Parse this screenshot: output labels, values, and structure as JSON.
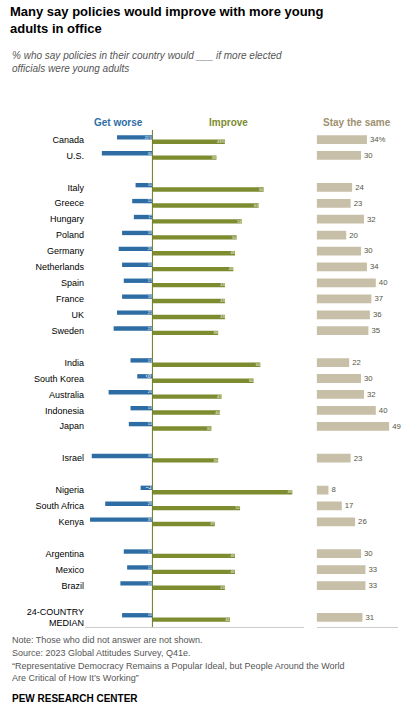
{
  "chart_data": [
    {
      "type": "bar",
      "orientation": "horizontal",
      "title": "Many say policies would improve with more young\nadults in office",
      "subtitle": "% who say policies in their country would ___ if more elected\nofficials were young adults",
      "annotations": [
        "Note: Those who did not answer are not shown.",
        "Source: 2023 Global Attitudes Survey, Q41e.",
        "“Representative Democracy Remains a Popular Ideal, but People Around the World Are Critical of How It’s Working”",
        "PEW RESEARCH CENTER"
      ],
      "categories": [
        "Canada",
        "U.S.",
        null,
        "Italy",
        "Greece",
        "Hungary",
        "Poland",
        "Germany",
        "Netherlands",
        "Spain",
        "France",
        "UK",
        "Sweden",
        null,
        "India",
        "South Korea",
        "Australia",
        "Indonesia",
        "Japan",
        null,
        "Israel",
        null,
        "Nigeria",
        "South Africa",
        "Kenya",
        null,
        "Argentina",
        "Mexico",
        "Brazil",
        null,
        "24-COUNTRY\nMEDIAN"
      ],
      "series": [
        {
          "name": "Get worse",
          "color": "#2e6da4",
          "values": [
            21,
            30,
            null,
            10,
            12,
            11,
            18,
            20,
            18,
            17,
            18,
            21,
            23,
            null,
            13,
            9,
            26,
            13,
            14,
            null,
            36,
            null,
            7,
            28,
            37,
            null,
            17,
            15,
            19,
            null,
            18
          ],
          "value_labels": [
            "21%",
            "30",
            null,
            "10",
            "12",
            "11",
            "18",
            "20",
            "18",
            "17",
            "18",
            "21",
            "23",
            null,
            "13",
            "9",
            "26",
            "13",
            "14",
            null,
            "36",
            null,
            "7",
            "28",
            "37",
            null,
            "17",
            "15",
            "19",
            null,
            "18"
          ]
        },
        {
          "name": "Improve",
          "color": "#7d8c2e",
          "values": [
            43,
            38,
            null,
            66,
            63,
            53,
            50,
            49,
            48,
            43,
            43,
            43,
            39,
            null,
            64,
            60,
            41,
            40,
            35,
            null,
            39,
            null,
            83,
            52,
            37,
            null,
            49,
            49,
            43,
            null,
            46
          ],
          "value_labels": [
            "43%",
            "38",
            null,
            "66",
            "63",
            "53",
            "50",
            "49",
            "48",
            "43",
            "43",
            "43",
            "39",
            null,
            "64",
            "60",
            "41",
            "40",
            "35",
            null,
            "39",
            null,
            "83",
            "52",
            "37",
            null,
            "49",
            "49",
            "43",
            null,
            "46"
          ]
        }
      ],
      "xlim": [
        -40,
        90
      ],
      "tick_labels": "y",
      "data_labels": true
    },
    {
      "type": "bar",
      "orientation": "horizontal",
      "categories": [
        "Canada",
        "U.S.",
        null,
        "Italy",
        "Greece",
        "Hungary",
        "Poland",
        "Germany",
        "Netherlands",
        "Spain",
        "France",
        "UK",
        "Sweden",
        null,
        "India",
        "South Korea",
        "Australia",
        "Indonesia",
        "Japan",
        null,
        "Israel",
        null,
        "Nigeria",
        "South Africa",
        "Kenya",
        null,
        "Argentina",
        "Mexico",
        "Brazil",
        null,
        "24-COUNTRY\nMEDIAN"
      ],
      "series": [
        {
          "name": "Stay the same",
          "color": "#c8bfa8",
          "values": [
            34,
            30,
            null,
            24,
            23,
            32,
            20,
            30,
            34,
            40,
            37,
            36,
            35,
            null,
            22,
            30,
            32,
            40,
            49,
            null,
            23,
            null,
            8,
            17,
            26,
            null,
            30,
            33,
            33,
            null,
            31
          ],
          "value_labels": [
            "34%",
            "30",
            null,
            "24",
            "23",
            "32",
            "20",
            "30",
            "34",
            "40",
            "37",
            "36",
            "35",
            null,
            "22",
            "30",
            "32",
            "40",
            "49",
            null,
            "23",
            null,
            "8",
            "17",
            "26",
            null,
            "30",
            "33",
            "33",
            null,
            "31"
          ]
        }
      ],
      "xlim": [
        0,
        55
      ],
      "tick_labels": false,
      "data_labels": true
    }
  ]
}
